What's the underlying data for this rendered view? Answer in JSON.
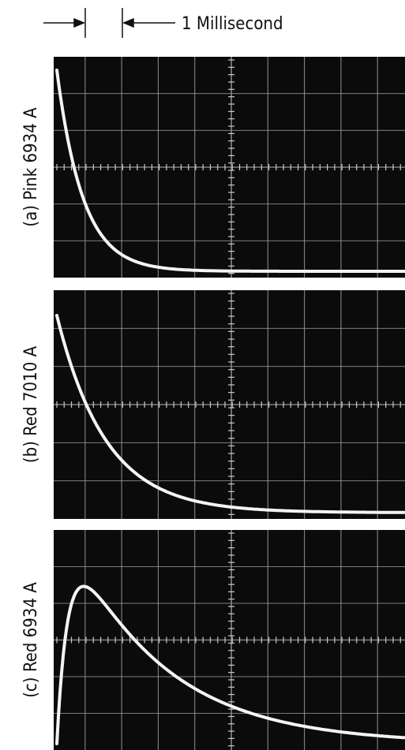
{
  "scale_label": "1 Millisecond",
  "panels": [
    {
      "label": "(a) Pink 6934 A"
    },
    {
      "label": "(b) Red 7010 A"
    },
    {
      "label": "(c) Red 6934 A"
    }
  ]
}
